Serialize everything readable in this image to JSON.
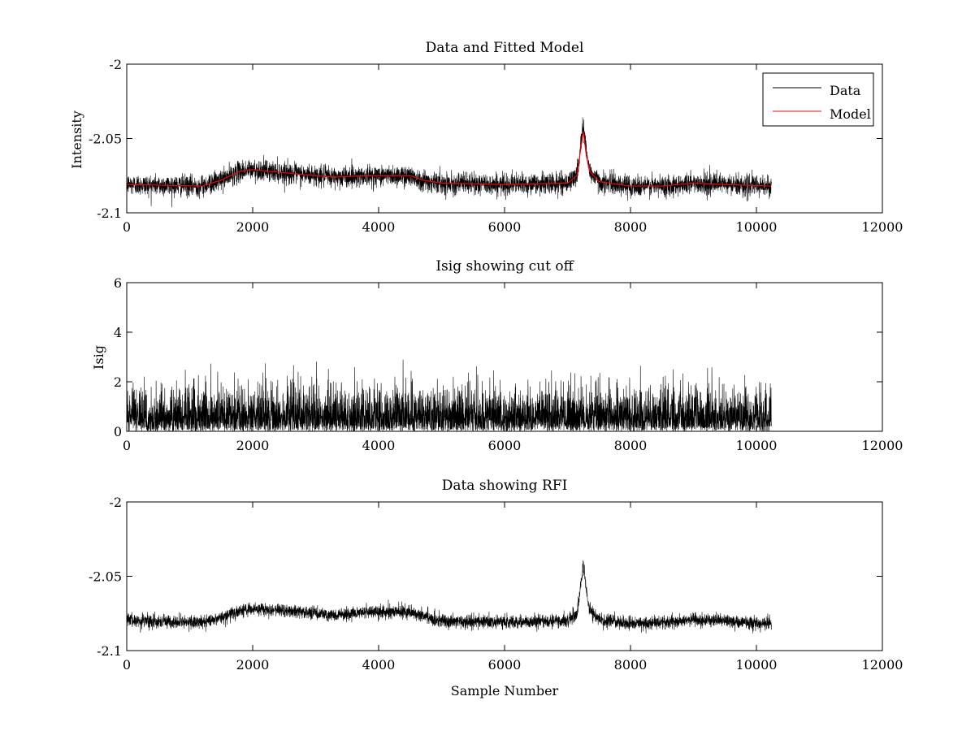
{
  "chart_data": [
    {
      "type": "line",
      "title": "Data and Fitted Model",
      "xlabel": "",
      "ylabel": "Intensity",
      "xlim": [
        0,
        12000
      ],
      "ylim": [
        -2.1,
        -2.0
      ],
      "xticks": [
        0,
        2000,
        4000,
        6000,
        8000,
        10000,
        12000
      ],
      "yticks": [
        -2.1,
        -2.05,
        -2
      ],
      "xtick_labels": [
        "0",
        "2000",
        "4000",
        "6000",
        "8000",
        "10000",
        "12000"
      ],
      "ytick_labels": [
        "-2.1",
        "-2.05",
        "-2"
      ],
      "legend": {
        "placement": "top-right",
        "entries": [
          {
            "name": "Data",
            "color": "#000000"
          },
          {
            "name": "Model",
            "color": "#ff0000"
          }
        ]
      },
      "n_samples": 10240,
      "noise_amplitude": 0.0035,
      "series": [
        {
          "name": "Data",
          "color": "#000000",
          "kind": "noisy",
          "baseline_x": [
            0,
            1200,
            1500,
            1800,
            2000,
            2500,
            3000,
            3300,
            3800,
            4500,
            4700,
            5000,
            6000,
            7000,
            7150,
            7250,
            7300,
            7350,
            7500,
            8000,
            8500,
            9000,
            9500,
            10240
          ],
          "baseline_y": [
            -2.081,
            -2.082,
            -2.078,
            -2.072,
            -2.071,
            -2.073,
            -2.075,
            -2.076,
            -2.075,
            -2.075,
            -2.078,
            -2.08,
            -2.081,
            -2.08,
            -2.075,
            -2.04,
            -2.06,
            -2.072,
            -2.079,
            -2.082,
            -2.082,
            -2.08,
            -2.081,
            -2.082
          ]
        },
        {
          "name": "Model",
          "color": "#ff0000",
          "kind": "smooth",
          "x": [
            0,
            1200,
            1500,
            1800,
            2000,
            2500,
            3000,
            3300,
            3800,
            4500,
            4700,
            5000,
            6000,
            7000,
            7150,
            7250,
            7300,
            7350,
            7500,
            8000,
            8500,
            9000,
            9500,
            10240
          ],
          "y": [
            -2.081,
            -2.082,
            -2.078,
            -2.072,
            -2.071,
            -2.073,
            -2.075,
            -2.076,
            -2.075,
            -2.075,
            -2.078,
            -2.08,
            -2.081,
            -2.08,
            -2.075,
            -2.045,
            -2.062,
            -2.072,
            -2.079,
            -2.082,
            -2.082,
            -2.08,
            -2.081,
            -2.082
          ]
        }
      ]
    },
    {
      "type": "line",
      "title": "Isig showing cut off",
      "xlabel": "",
      "ylabel": "Isig",
      "xlim": [
        0,
        12000
      ],
      "ylim": [
        0,
        6
      ],
      "xticks": [
        0,
        2000,
        4000,
        6000,
        8000,
        10000,
        12000
      ],
      "yticks": [
        0,
        2,
        4,
        6
      ],
      "xtick_labels": [
        "0",
        "2000",
        "4000",
        "6000",
        "8000",
        "10000",
        "12000"
      ],
      "ytick_labels": [
        "0",
        "2",
        "4",
        "6"
      ],
      "n_samples": 10240,
      "series": [
        {
          "name": "Isig",
          "color": "#000000",
          "kind": "abs-noise",
          "scale": 0.8,
          "max": 3.8
        }
      ]
    },
    {
      "type": "line",
      "title": "Data showing RFI",
      "xlabel": "Sample Number",
      "ylabel": "",
      "xlim": [
        0,
        12000
      ],
      "ylim": [
        -2.1,
        -2.0
      ],
      "xticks": [
        0,
        2000,
        4000,
        6000,
        8000,
        10000,
        12000
      ],
      "yticks": [
        -2.1,
        -2.05,
        -2
      ],
      "xtick_labels": [
        "0",
        "2000",
        "4000",
        "6000",
        "8000",
        "10000",
        "12000"
      ],
      "ytick_labels": [
        "-2.1",
        "-2.05",
        "-2"
      ],
      "n_samples": 10240,
      "noise_amplitude": 0.0022,
      "series": [
        {
          "name": "Data",
          "color": "#000000",
          "kind": "noisy",
          "baseline_x": [
            0,
            1200,
            1500,
            1800,
            2000,
            2500,
            3000,
            3300,
            3800,
            4500,
            4700,
            5000,
            6000,
            7000,
            7150,
            7250,
            7300,
            7350,
            7500,
            8000,
            8500,
            9000,
            9500,
            10240
          ],
          "baseline_y": [
            -2.08,
            -2.081,
            -2.078,
            -2.073,
            -2.072,
            -2.073,
            -2.075,
            -2.076,
            -2.074,
            -2.074,
            -2.077,
            -2.08,
            -2.081,
            -2.08,
            -2.075,
            -2.042,
            -2.06,
            -2.072,
            -2.079,
            -2.082,
            -2.081,
            -2.079,
            -2.08,
            -2.082
          ]
        }
      ]
    }
  ]
}
